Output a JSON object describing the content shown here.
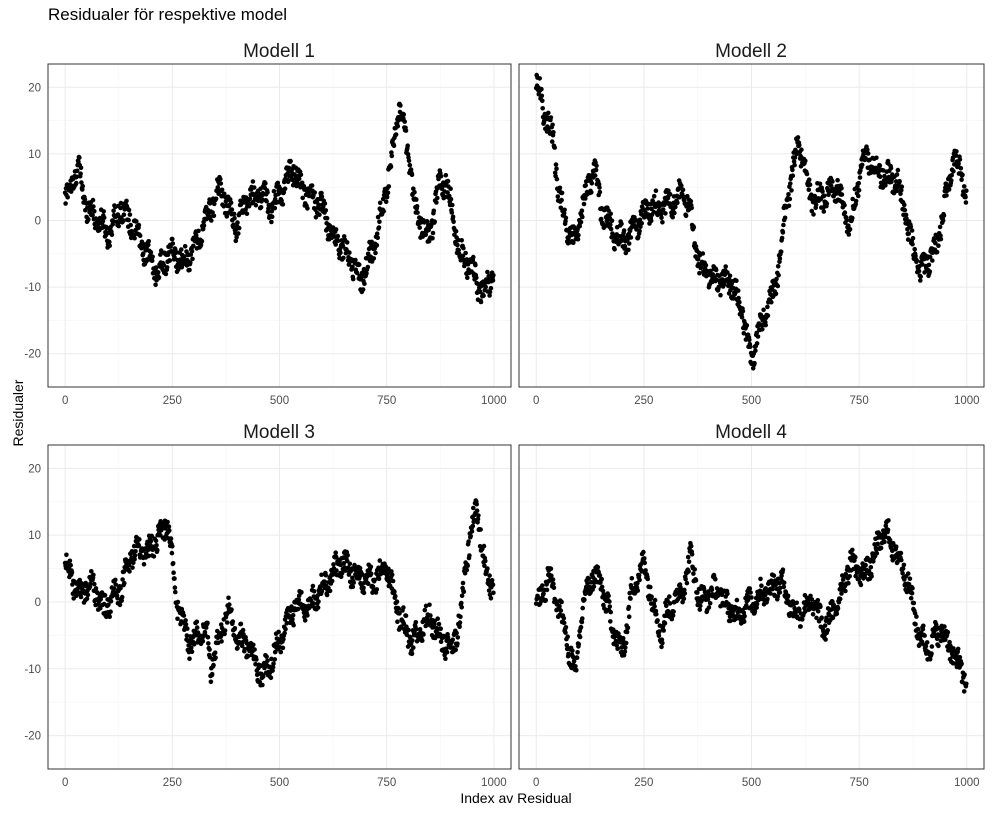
{
  "chart_data": {
    "type": "scatter",
    "title": "Residualer för respektive model",
    "xlabel": "Index av Residual",
    "ylabel": "Residualer",
    "xlim": [
      -40,
      1040
    ],
    "ylim": [
      -25,
      23.5
    ],
    "xticks": [
      0,
      250,
      500,
      750,
      1000
    ],
    "yticks": [
      -20,
      -10,
      0,
      10,
      20
    ],
    "grid": true,
    "colors": {
      "point": "#000000",
      "grid_major": "#ebebeb",
      "grid_minor": "#f5f5f5",
      "panel_border": "#333333"
    },
    "panels": [
      {
        "name": "Modell 1",
        "trend": [
          [
            0,
            3
          ],
          [
            30,
            8
          ],
          [
            50,
            2
          ],
          [
            80,
            0
          ],
          [
            100,
            -2
          ],
          [
            130,
            2
          ],
          [
            150,
            0
          ],
          [
            190,
            -5
          ],
          [
            215,
            -8
          ],
          [
            240,
            -5
          ],
          [
            280,
            -6
          ],
          [
            310,
            -3
          ],
          [
            340,
            2
          ],
          [
            360,
            5
          ],
          [
            380,
            2
          ],
          [
            400,
            -1
          ],
          [
            420,
            3
          ],
          [
            460,
            4
          ],
          [
            480,
            2
          ],
          [
            510,
            5
          ],
          [
            530,
            8
          ],
          [
            560,
            4
          ],
          [
            600,
            2
          ],
          [
            620,
            -2
          ],
          [
            660,
            -5
          ],
          [
            690,
            -9
          ],
          [
            720,
            -4
          ],
          [
            750,
            5
          ],
          [
            780,
            17
          ],
          [
            800,
            10
          ],
          [
            820,
            1
          ],
          [
            850,
            -3
          ],
          [
            870,
            5
          ],
          [
            890,
            6
          ],
          [
            900,
            2
          ],
          [
            920,
            -5
          ],
          [
            950,
            -7
          ],
          [
            970,
            -11
          ],
          [
            1000,
            -8
          ]
        ]
      },
      {
        "name": "Modell 2",
        "trend": [
          [
            0,
            21
          ],
          [
            20,
            16
          ],
          [
            40,
            12
          ],
          [
            50,
            5
          ],
          [
            70,
            -1
          ],
          [
            90,
            -3
          ],
          [
            110,
            3
          ],
          [
            135,
            8
          ],
          [
            150,
            2
          ],
          [
            180,
            -2
          ],
          [
            210,
            -3
          ],
          [
            260,
            2
          ],
          [
            300,
            2
          ],
          [
            340,
            4
          ],
          [
            360,
            1
          ],
          [
            380,
            -7
          ],
          [
            420,
            -9
          ],
          [
            450,
            -9
          ],
          [
            480,
            -14
          ],
          [
            500,
            -21
          ],
          [
            520,
            -16
          ],
          [
            550,
            -11
          ],
          [
            560,
            -8
          ],
          [
            580,
            2
          ],
          [
            610,
            12
          ],
          [
            640,
            3
          ],
          [
            680,
            4
          ],
          [
            700,
            5
          ],
          [
            730,
            -1
          ],
          [
            760,
            10
          ],
          [
            800,
            7
          ],
          [
            840,
            6
          ],
          [
            870,
            -3
          ],
          [
            890,
            -8
          ],
          [
            930,
            -4
          ],
          [
            950,
            3
          ],
          [
            970,
            10
          ],
          [
            1000,
            4
          ]
        ]
      },
      {
        "name": "Modell 3",
        "trend": [
          [
            0,
            6
          ],
          [
            30,
            1
          ],
          [
            60,
            3
          ],
          [
            90,
            -1
          ],
          [
            130,
            2
          ],
          [
            160,
            8
          ],
          [
            190,
            7
          ],
          [
            220,
            10
          ],
          [
            240,
            12
          ],
          [
            260,
            0
          ],
          [
            290,
            -6
          ],
          [
            330,
            -4
          ],
          [
            340,
            -10
          ],
          [
            380,
            -1
          ],
          [
            400,
            -5
          ],
          [
            430,
            -7
          ],
          [
            460,
            -11
          ],
          [
            480,
            -9
          ],
          [
            500,
            -6
          ],
          [
            540,
            0
          ],
          [
            560,
            -1
          ],
          [
            600,
            2
          ],
          [
            640,
            6
          ],
          [
            680,
            4
          ],
          [
            720,
            3
          ],
          [
            750,
            5
          ],
          [
            780,
            -2
          ],
          [
            810,
            -6
          ],
          [
            850,
            -2
          ],
          [
            870,
            -5
          ],
          [
            900,
            -7
          ],
          [
            920,
            -3
          ],
          [
            940,
            8
          ],
          [
            960,
            14
          ],
          [
            980,
            5
          ],
          [
            1000,
            2
          ]
        ]
      },
      {
        "name": "Modell 4",
        "trend": [
          [
            0,
            -1
          ],
          [
            30,
            4
          ],
          [
            50,
            0
          ],
          [
            70,
            -5
          ],
          [
            90,
            -11
          ],
          [
            110,
            0
          ],
          [
            130,
            4
          ],
          [
            150,
            3
          ],
          [
            170,
            -2
          ],
          [
            200,
            -8
          ],
          [
            220,
            1
          ],
          [
            250,
            6
          ],
          [
            260,
            3
          ],
          [
            290,
            -5
          ],
          [
            300,
            -2
          ],
          [
            340,
            2
          ],
          [
            360,
            7
          ],
          [
            380,
            0
          ],
          [
            420,
            2
          ],
          [
            460,
            -2
          ],
          [
            500,
            0
          ],
          [
            540,
            2
          ],
          [
            570,
            3
          ],
          [
            600,
            -2
          ],
          [
            640,
            0
          ],
          [
            670,
            -4
          ],
          [
            700,
            0
          ],
          [
            730,
            6
          ],
          [
            760,
            4
          ],
          [
            780,
            6
          ],
          [
            810,
            11
          ],
          [
            830,
            8
          ],
          [
            860,
            4
          ],
          [
            890,
            -5
          ],
          [
            910,
            -7
          ],
          [
            940,
            -4
          ],
          [
            970,
            -8
          ],
          [
            1000,
            -12
          ]
        ]
      }
    ]
  }
}
